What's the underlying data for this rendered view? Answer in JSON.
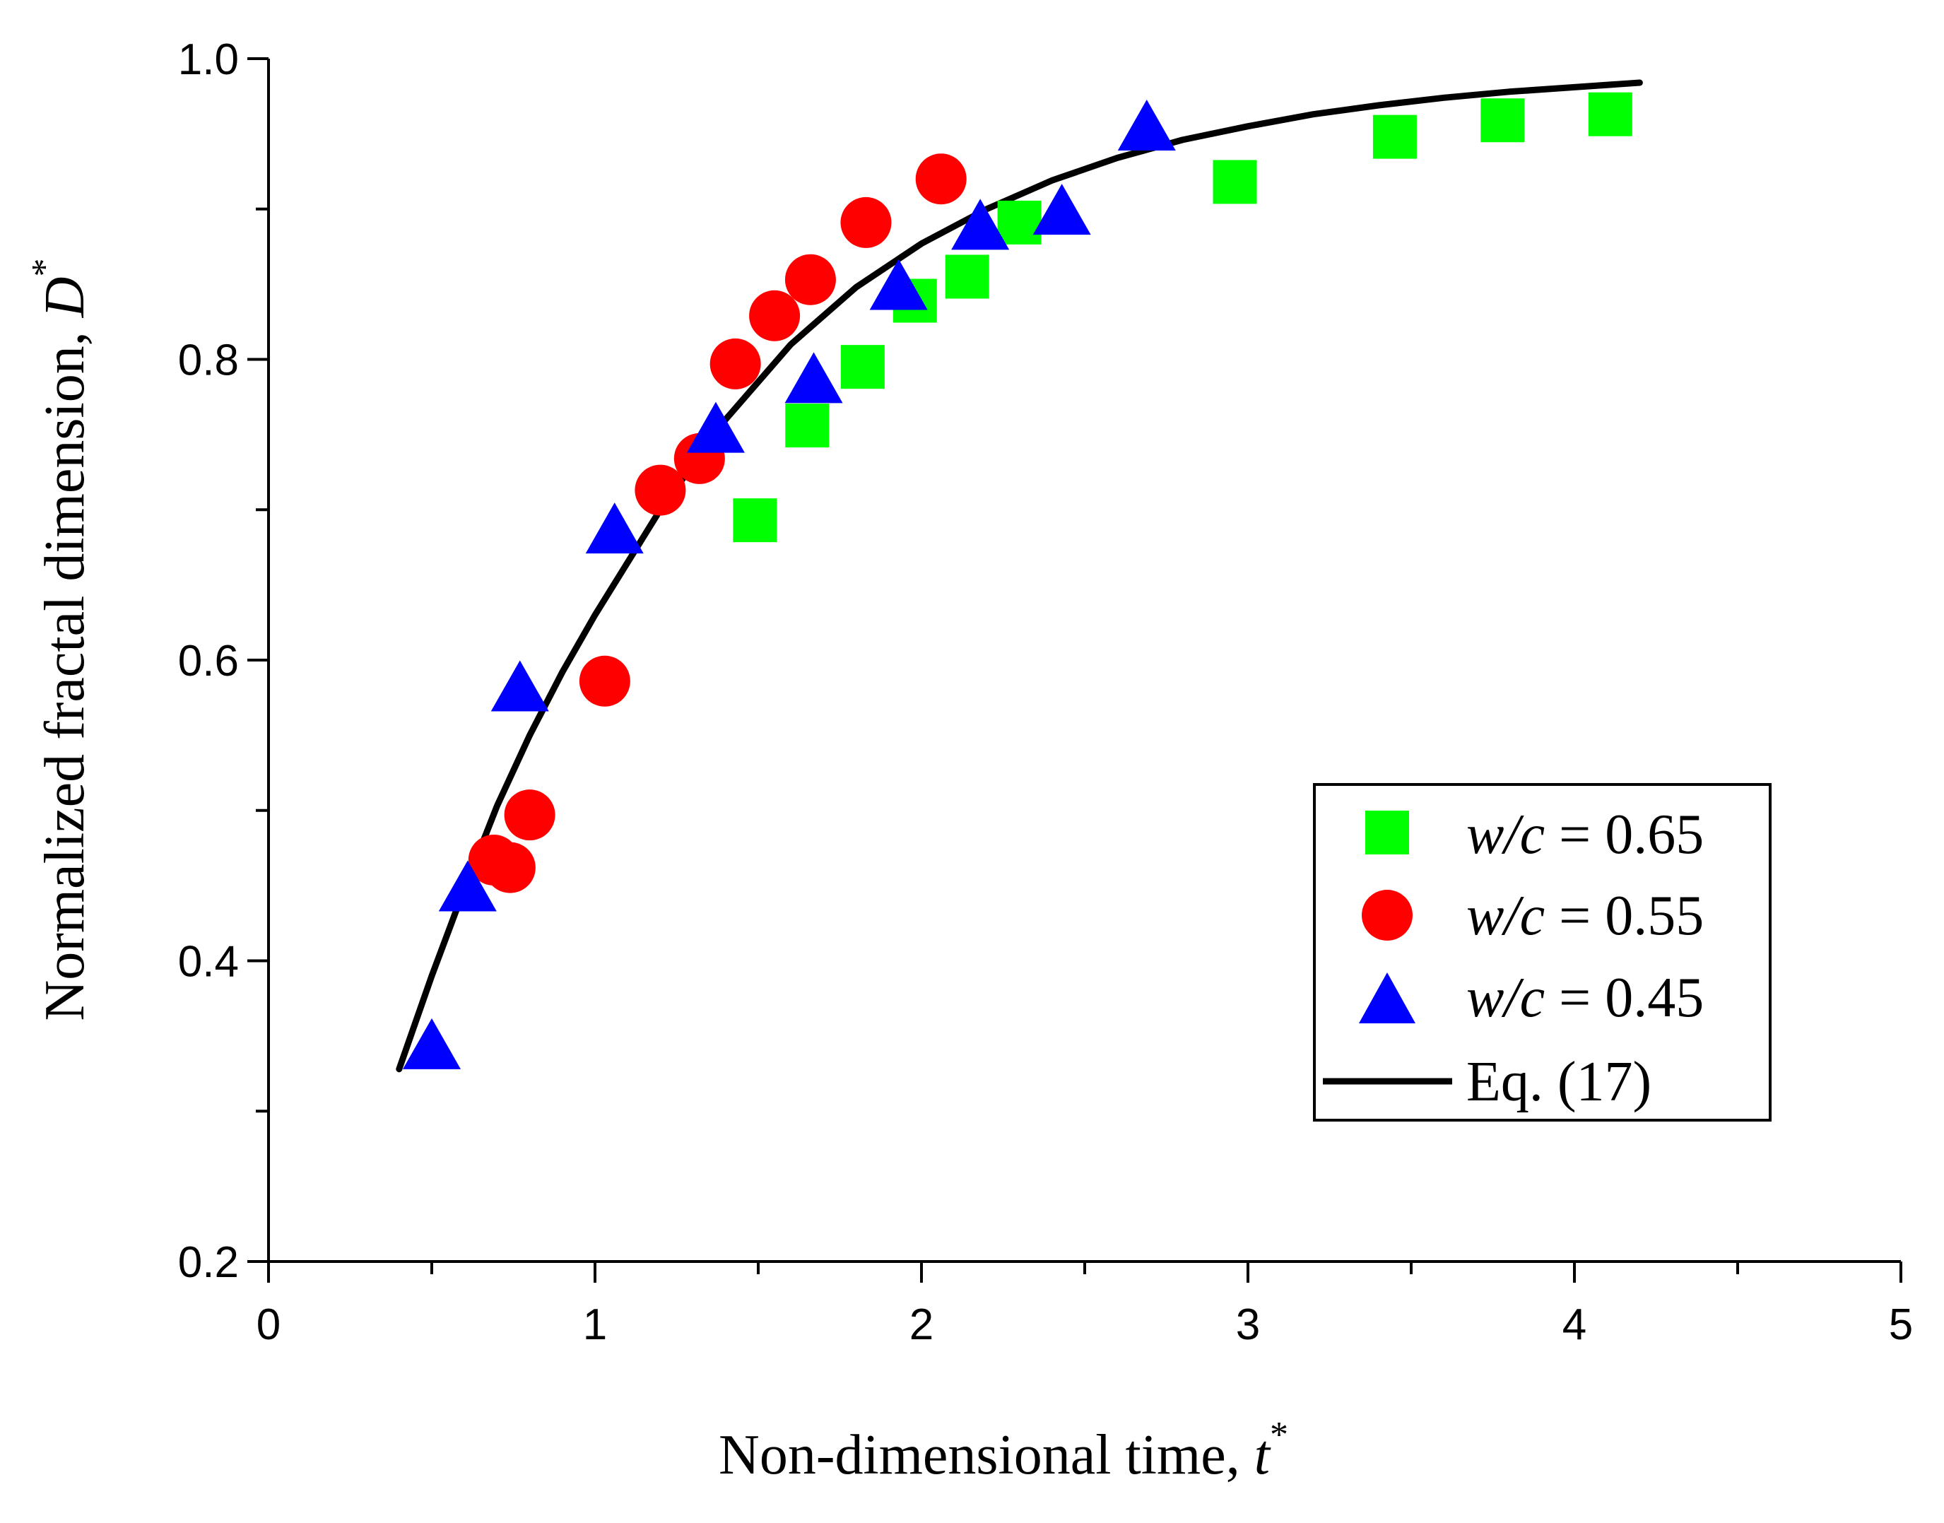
{
  "chart_data": {
    "type": "scatter",
    "title": "",
    "xlabel": "Non-dimensional time, ",
    "xlabel_var": "t",
    "xlabel_sup": "*",
    "ylabel": "Normalized fractal dimension, ",
    "ylabel_var": "D",
    "ylabel_sup": "*",
    "xlim": [
      0,
      5
    ],
    "ylim": [
      0.2,
      1.0
    ],
    "x_ticks": [
      "0",
      "1",
      "2",
      "3",
      "4",
      "5"
    ],
    "y_ticks": [
      "0.2",
      "0.4",
      "0.6",
      "0.8",
      "1.0"
    ],
    "grid": false,
    "legend_position": "right",
    "series": [
      {
        "name_var": "w/c",
        "name_rest": " = 0.65",
        "marker": "square",
        "color": "#00FF00",
        "x": [
          1.49,
          1.65,
          1.82,
          1.98,
          2.14,
          2.3,
          2.96,
          3.45,
          3.78,
          4.11
        ],
        "y": [
          0.693,
          0.756,
          0.795,
          0.839,
          0.855,
          0.891,
          0.918,
          0.948,
          0.959,
          0.963
        ]
      },
      {
        "name_var": "w/c",
        "name_rest": " = 0.55",
        "marker": "circle",
        "color": "#FF0000",
        "x": [
          0.69,
          0.74,
          0.8,
          1.03,
          1.2,
          1.32,
          1.43,
          1.55,
          1.66,
          1.83,
          2.06
        ],
        "y": [
          0.467,
          0.462,
          0.497,
          0.586,
          0.713,
          0.734,
          0.797,
          0.829,
          0.853,
          0.891,
          0.92
        ]
      },
      {
        "name_var": "w/c",
        "name_rest": " = 0.45",
        "marker": "triangle",
        "color": "#0000FF",
        "x": [
          0.5,
          0.61,
          0.77,
          1.06,
          1.37,
          1.67,
          1.93,
          2.18,
          2.43,
          2.69
        ],
        "y": [
          0.342,
          0.447,
          0.58,
          0.685,
          0.752,
          0.785,
          0.847,
          0.887,
          0.897,
          0.953
        ]
      },
      {
        "name": "Eq. (17)",
        "type": "line",
        "color": "#000000",
        "x": [
          0.4,
          0.5,
          0.6,
          0.7,
          0.8,
          0.9,
          1.0,
          1.2,
          1.4,
          1.6,
          1.8,
          2.0,
          2.2,
          2.4,
          2.6,
          2.8,
          3.0,
          3.2,
          3.4,
          3.6,
          3.8,
          4.0,
          4.2
        ],
        "y": [
          0.328,
          0.39,
          0.448,
          0.503,
          0.55,
          0.592,
          0.63,
          0.7,
          0.76,
          0.81,
          0.848,
          0.877,
          0.9,
          0.919,
          0.934,
          0.946,
          0.955,
          0.963,
          0.969,
          0.974,
          0.978,
          0.981,
          0.984
        ]
      }
    ]
  }
}
